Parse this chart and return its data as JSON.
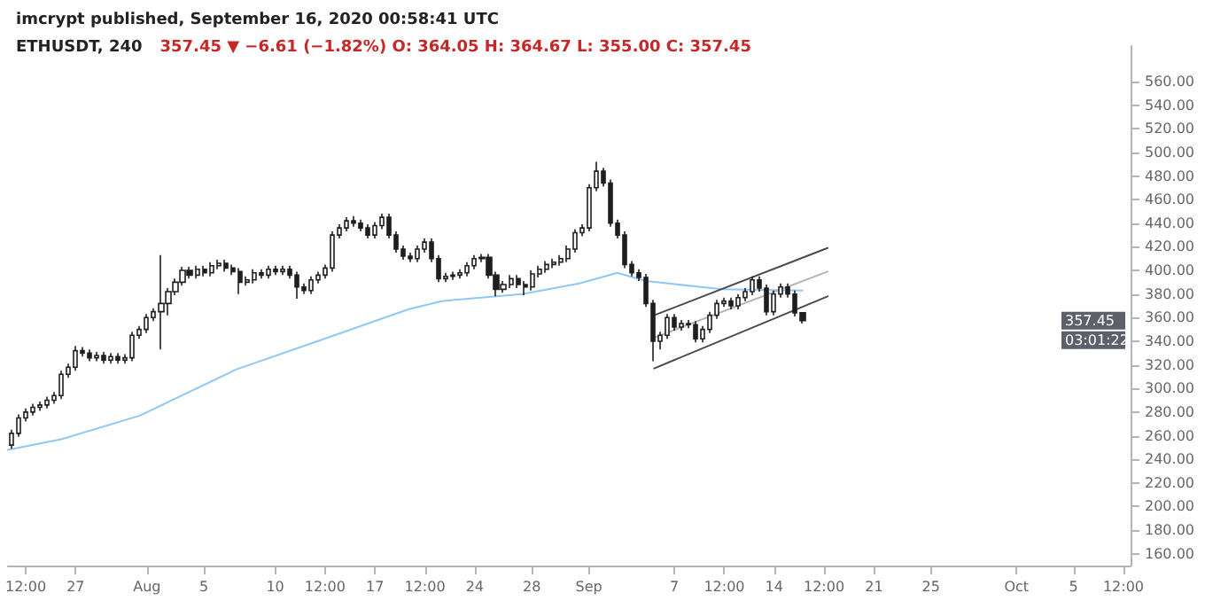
{
  "chart_data": {
    "type": "candlestick",
    "title": "ETHUSDT, 240",
    "subtitle": "357.45 ▼ −6.61 (−1.82%) O: 364.05 H: 364.67 L: 355.00 C: 357.45",
    "annotations": [
      "imcrypt published, September 16, 2020 00:58:41 UTC",
      "357.45",
      "03:01:22"
    ],
    "marker": "none",
    "xlim": [
      "2020-07-22T06:00",
      "2020-10-09"
    ],
    "xticks": [
      {
        "value": "2020-07-23T12:00",
        "label": "12:00"
      },
      {
        "value": "2020-07-27",
        "label": "27"
      },
      {
        "value": "2020-08-01",
        "label": "Aug"
      },
      {
        "value": "2020-08-05",
        "label": "5"
      },
      {
        "value": "2020-08-10",
        "label": "10"
      },
      {
        "value": "2020-08-13T12:00",
        "label": "12:00"
      },
      {
        "value": "2020-08-17",
        "label": "17"
      },
      {
        "value": "2020-08-20T12:00",
        "label": "12:00"
      },
      {
        "value": "2020-08-24",
        "label": "24"
      },
      {
        "value": "2020-08-28",
        "label": "28"
      },
      {
        "value": "2020-09-01",
        "label": "Sep"
      },
      {
        "value": "2020-09-07",
        "label": "7"
      },
      {
        "value": "2020-09-10T12:00",
        "label": "12:00"
      },
      {
        "value": "2020-09-14",
        "label": "14"
      },
      {
        "value": "2020-09-17T12:00",
        "label": "12:00"
      },
      {
        "value": "2020-09-21",
        "label": "21"
      },
      {
        "value": "2020-09-25",
        "label": "25"
      },
      {
        "value": "2020-10-01",
        "label": "Oct"
      },
      {
        "value": "2020-10-05",
        "label": "5"
      },
      {
        "value": "2020-10-08T12:00",
        "label": "12:00"
      }
    ],
    "ylim": [
      150,
      590
    ],
    "yticks": [
      {
        "value": 160,
        "label": "160.00"
      },
      {
        "value": 180,
        "label": "180.00"
      },
      {
        "value": 200,
        "label": "200.00"
      },
      {
        "value": 220,
        "label": "220.00"
      },
      {
        "value": 240,
        "label": "240.00"
      },
      {
        "value": 260,
        "label": "260.00"
      },
      {
        "value": 280,
        "label": "280.00"
      },
      {
        "value": 300,
        "label": "300.00"
      },
      {
        "value": 320,
        "label": "320.00"
      },
      {
        "value": 340,
        "label": "340.00"
      },
      {
        "value": 360,
        "label": "360.00"
      },
      {
        "value": 380,
        "label": "380.00"
      },
      {
        "value": 400,
        "label": "400.00"
      },
      {
        "value": 420,
        "label": "420.00"
      },
      {
        "value": 440,
        "label": "440.00"
      },
      {
        "value": 460,
        "label": "460.00"
      },
      {
        "value": 480,
        "label": "480.00"
      },
      {
        "value": 500,
        "label": "500.00"
      },
      {
        "value": 520,
        "label": "520.00"
      },
      {
        "value": 540,
        "label": "540.00"
      },
      {
        "value": 560,
        "label": "560.00"
      }
    ],
    "series": [
      {
        "type": "line",
        "color": "#90c8f5",
        "x": [
          "2020-07-22T06:00",
          "2020-07-26",
          "2020-07-31T12:00",
          "2020-08-07T06:00",
          "2020-08-13T16:00",
          "2020-08-19T08:00",
          "2020-08-21T16:00",
          "2020-08-27T08:00",
          "2020-08-31T08:00",
          "2020-09-03",
          "2020-09-05",
          "2020-09-10T08:00",
          "2020-09-16"
        ],
        "values": [
          248,
          257,
          277,
          316,
          343,
          367,
          374,
          380,
          389,
          398,
          391,
          384,
          383
        ]
      },
      {
        "type": "line",
        "color": "#4a4a4a",
        "x": [
          "2020-09-05T14:00",
          "2020-09-17T18:00"
        ],
        "values": [
          362,
          419
        ]
      },
      {
        "type": "line",
        "color": "#b4b4b4",
        "x": [
          "2020-09-05T14:00",
          "2020-09-17T18:00"
        ],
        "values": [
          343,
          399
        ]
      },
      {
        "type": "line",
        "color": "#4a4a4a",
        "x": [
          "2020-09-05T14:00",
          "2020-09-17T18:00"
        ],
        "values": [
          317,
          378
        ]
      },
      {
        "color": "#1e1e1e",
        "x": [
          "2020-07-22T12:00",
          "2020-07-23",
          "2020-07-23T12:00",
          "2020-07-24",
          "2020-07-24T12:00",
          "2020-07-25",
          "2020-07-25T12:00",
          "2020-07-26",
          "2020-07-26T12:00",
          "2020-07-27",
          "2020-07-27T12:00",
          "2020-07-28",
          "2020-07-28T12:00",
          "2020-07-29",
          "2020-07-29T12:00",
          "2020-07-30",
          "2020-07-30T12:00",
          "2020-07-31",
          "2020-07-31T12:00",
          "2020-08-01",
          "2020-08-01T12:00",
          "2020-08-02",
          "2020-08-02T12:00",
          "2020-08-03",
          "2020-08-03T12:00",
          "2020-08-04",
          "2020-08-04T12:00",
          "2020-08-05",
          "2020-08-05T12:00",
          "2020-08-06",
          "2020-08-06T12:00",
          "2020-08-07",
          "2020-08-07T12:00",
          "2020-08-08",
          "2020-08-08T12:00",
          "2020-08-09",
          "2020-08-09T12:00",
          "2020-08-10",
          "2020-08-10T12:00",
          "2020-08-11",
          "2020-08-11T12:00",
          "2020-08-12",
          "2020-08-12T12:00",
          "2020-08-13",
          "2020-08-13T12:00",
          "2020-08-14",
          "2020-08-14T12:00",
          "2020-08-15",
          "2020-08-15T12:00",
          "2020-08-16",
          "2020-08-16T12:00",
          "2020-08-17",
          "2020-08-17T12:00",
          "2020-08-18",
          "2020-08-18T12:00",
          "2020-08-19",
          "2020-08-19T12:00",
          "2020-08-20",
          "2020-08-20T12:00",
          "2020-08-21",
          "2020-08-21T12:00",
          "2020-08-22",
          "2020-08-22T12:00",
          "2020-08-23",
          "2020-08-23T12:00",
          "2020-08-24",
          "2020-08-24T12:00",
          "2020-08-25",
          "2020-08-25T12:00",
          "2020-08-26",
          "2020-08-26T12:00",
          "2020-08-27",
          "2020-08-27T12:00",
          "2020-08-28",
          "2020-08-28T12:00",
          "2020-08-29",
          "2020-08-29T12:00",
          "2020-08-30",
          "2020-08-30T12:00",
          "2020-08-31",
          "2020-08-31T12:00",
          "2020-09-01",
          "2020-09-01T12:00",
          "2020-09-02",
          "2020-09-02T12:00",
          "2020-09-03",
          "2020-09-03T12:00",
          "2020-09-04",
          "2020-09-04T12:00",
          "2020-09-05",
          "2020-09-05T12:00",
          "2020-09-06",
          "2020-09-06T12:00",
          "2020-09-07",
          "2020-09-07T12:00",
          "2020-09-08",
          "2020-09-08T12:00",
          "2020-09-09",
          "2020-09-09T12:00",
          "2020-09-10",
          "2020-09-10T12:00",
          "2020-09-11",
          "2020-09-11T12:00",
          "2020-09-12",
          "2020-09-12T12:00",
          "2020-09-13",
          "2020-09-13T12:00",
          "2020-09-14",
          "2020-09-14T12:00",
          "2020-09-15",
          "2020-09-15T12:00",
          "2020-09-16"
        ],
        "ohlc": [
          [
            252,
            265,
            249,
            262
          ],
          [
            262,
            278,
            259,
            275
          ],
          [
            275,
            283,
            272,
            280
          ],
          [
            280,
            287,
            277,
            284
          ],
          [
            284,
            289,
            281,
            286
          ],
          [
            286,
            293,
            283,
            290
          ],
          [
            290,
            297,
            287,
            294
          ],
          [
            294,
            315,
            291,
            312
          ],
          [
            312,
            321,
            309,
            318
          ],
          [
            318,
            336,
            315,
            332
          ],
          [
            332,
            335,
            327,
            330
          ],
          [
            330,
            333,
            323,
            326
          ],
          [
            326,
            331,
            323,
            328
          ],
          [
            328,
            331,
            321,
            324
          ],
          [
            324,
            330,
            321,
            327
          ],
          [
            327,
            330,
            321,
            324
          ],
          [
            324,
            329,
            321,
            326
          ],
          [
            326,
            348,
            323,
            345
          ],
          [
            345,
            353,
            342,
            350
          ],
          [
            350,
            363,
            347,
            360
          ],
          [
            360,
            368,
            357,
            365
          ],
          [
            365,
            413,
            333,
            372
          ],
          [
            372,
            385,
            362,
            382
          ],
          [
            382,
            393,
            379,
            390
          ],
          [
            390,
            403,
            387,
            400
          ],
          [
            400,
            403,
            393,
            396
          ],
          [
            396,
            404,
            393,
            401
          ],
          [
            401,
            404,
            395,
            398
          ],
          [
            398,
            407,
            395,
            404
          ],
          [
            404,
            409,
            401,
            406
          ],
          [
            406,
            409,
            399,
            402
          ],
          [
            402,
            405,
            396,
            399
          ],
          [
            399,
            402,
            380,
            390
          ],
          [
            390,
            395,
            387,
            392
          ],
          [
            392,
            401,
            389,
            398
          ],
          [
            398,
            401,
            393,
            396
          ],
          [
            396,
            404,
            393,
            401
          ],
          [
            401,
            404,
            396,
            399
          ],
          [
            399,
            404,
            396,
            401
          ],
          [
            401,
            404,
            393,
            396
          ],
          [
            396,
            399,
            376,
            386
          ],
          [
            386,
            389,
            380,
            383
          ],
          [
            383,
            395,
            380,
            392
          ],
          [
            392,
            399,
            389,
            396
          ],
          [
            396,
            405,
            393,
            402
          ],
          [
            402,
            433,
            399,
            430
          ],
          [
            430,
            439,
            427,
            436
          ],
          [
            436,
            445,
            433,
            442
          ],
          [
            442,
            446,
            437,
            440
          ],
          [
            440,
            443,
            433,
            436
          ],
          [
            436,
            439,
            427,
            430
          ],
          [
            430,
            441,
            427,
            438
          ],
          [
            438,
            448,
            435,
            445
          ],
          [
            445,
            448,
            427,
            430
          ],
          [
            430,
            433,
            415,
            418
          ],
          [
            418,
            421,
            409,
            412
          ],
          [
            412,
            415,
            407,
            410
          ],
          [
            410,
            421,
            407,
            418
          ],
          [
            418,
            427,
            415,
            424
          ],
          [
            424,
            427,
            407,
            410
          ],
          [
            410,
            413,
            390,
            393
          ],
          [
            393,
            398,
            390,
            395
          ],
          [
            395,
            399,
            392,
            396
          ],
          [
            396,
            401,
            393,
            398
          ],
          [
            398,
            407,
            395,
            404
          ],
          [
            404,
            413,
            401,
            410
          ],
          [
            410,
            414,
            407,
            411
          ],
          [
            411,
            414,
            393,
            396
          ],
          [
            396,
            399,
            378,
            384
          ],
          [
            384,
            391,
            381,
            388
          ],
          [
            388,
            396,
            385,
            393
          ],
          [
            393,
            396,
            385,
            388
          ],
          [
            388,
            391,
            379,
            386
          ],
          [
            386,
            400,
            383,
            397
          ],
          [
            397,
            404,
            394,
            401
          ],
          [
            401,
            408,
            398,
            405
          ],
          [
            405,
            410,
            402,
            407
          ],
          [
            407,
            413,
            404,
            410
          ],
          [
            410,
            421,
            407,
            418
          ],
          [
            418,
            435,
            415,
            432
          ],
          [
            432,
            439,
            429,
            436
          ],
          [
            436,
            473,
            433,
            470
          ],
          [
            470,
            492,
            467,
            484
          ],
          [
            484,
            487,
            471,
            474
          ],
          [
            474,
            477,
            437,
            440
          ],
          [
            440,
            443,
            427,
            430
          ],
          [
            430,
            433,
            402,
            405
          ],
          [
            405,
            408,
            395,
            398
          ],
          [
            398,
            401,
            391,
            394
          ],
          [
            394,
            397,
            369,
            372
          ],
          [
            372,
            375,
            323,
            340
          ],
          [
            340,
            348,
            333,
            345
          ],
          [
            345,
            363,
            342,
            360
          ],
          [
            360,
            363,
            349,
            352
          ],
          [
            352,
            358,
            349,
            355
          ],
          [
            355,
            358,
            351,
            354
          ],
          [
            354,
            357,
            339,
            342
          ],
          [
            342,
            353,
            339,
            350
          ],
          [
            350,
            365,
            347,
            362
          ],
          [
            362,
            375,
            359,
            372
          ],
          [
            372,
            377,
            369,
            374
          ],
          [
            374,
            377,
            367,
            370
          ],
          [
            370,
            380,
            367,
            377
          ],
          [
            377,
            385,
            374,
            382
          ],
          [
            382,
            395,
            379,
            392
          ],
          [
            392,
            395,
            382,
            385
          ],
          [
            385,
            388,
            362,
            365
          ],
          [
            365,
            383,
            362,
            380
          ],
          [
            380,
            389,
            377,
            386
          ],
          [
            386,
            389,
            377,
            380
          ],
          [
            380,
            383,
            361,
            364.05
          ],
          [
            364.05,
            364.67,
            355,
            357.45
          ]
        ]
      }
    ]
  }
}
